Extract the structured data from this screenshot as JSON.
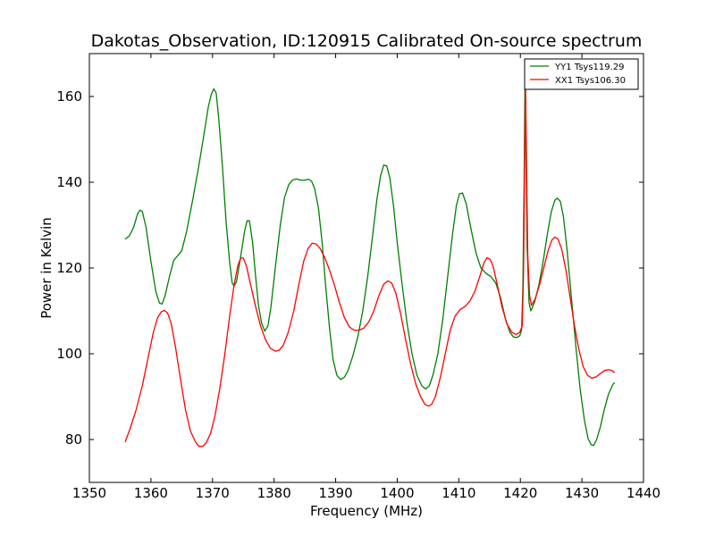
{
  "chart_data": {
    "type": "line",
    "title": "Dakotas_Observation, ID:120915 Calibrated On-source spectrum",
    "xlabel": "Frequency (MHz)",
    "ylabel": "Power in Kelvin",
    "xlim": [
      1350,
      1440
    ],
    "ylim": [
      70,
      170
    ],
    "xticks": [
      1350,
      1360,
      1370,
      1380,
      1390,
      1400,
      1410,
      1420,
      1430,
      1440
    ],
    "yticks": [
      80,
      100,
      120,
      140,
      160
    ],
    "grid": false,
    "legend": "top-right",
    "series": [
      {
        "name": "YY1 Tsys119.29",
        "color": "#008000",
        "points": [
          [
            1355.8,
            126.7
          ],
          [
            1356.5,
            127.5
          ],
          [
            1357.2,
            129.5
          ],
          [
            1357.8,
            132.5
          ],
          [
            1358.2,
            133.5
          ],
          [
            1358.6,
            133.2
          ],
          [
            1359.2,
            129.5
          ],
          [
            1360.0,
            121.5
          ],
          [
            1360.8,
            114.5
          ],
          [
            1361.4,
            111.8
          ],
          [
            1361.8,
            111.6
          ],
          [
            1362.3,
            113.5
          ],
          [
            1363.0,
            118.0
          ],
          [
            1363.7,
            121.8
          ],
          [
            1364.3,
            122.8
          ],
          [
            1365.0,
            124.0
          ],
          [
            1365.8,
            128.5
          ],
          [
            1366.8,
            136.0
          ],
          [
            1367.8,
            144.0
          ],
          [
            1368.6,
            151.0
          ],
          [
            1369.3,
            157.5
          ],
          [
            1369.8,
            160.5
          ],
          [
            1370.2,
            161.8
          ],
          [
            1370.6,
            160.8
          ],
          [
            1371.0,
            155.0
          ],
          [
            1371.6,
            144.0
          ],
          [
            1372.2,
            131.0
          ],
          [
            1372.8,
            121.0
          ],
          [
            1373.2,
            116.5
          ],
          [
            1373.5,
            115.8
          ],
          [
            1373.9,
            116.8
          ],
          [
            1374.5,
            122.0
          ],
          [
            1375.2,
            128.5
          ],
          [
            1375.6,
            131.0
          ],
          [
            1376.0,
            131.0
          ],
          [
            1376.5,
            126.0
          ],
          [
            1377.0,
            118.0
          ],
          [
            1377.5,
            111.0
          ],
          [
            1378.0,
            107.0
          ],
          [
            1378.5,
            105.3
          ],
          [
            1379.0,
            106.5
          ],
          [
            1379.5,
            111.0
          ],
          [
            1380.2,
            120.0
          ],
          [
            1381.0,
            130.0
          ],
          [
            1381.7,
            136.5
          ],
          [
            1382.4,
            139.5
          ],
          [
            1383.0,
            140.5
          ],
          [
            1383.6,
            140.8
          ],
          [
            1384.3,
            140.5
          ],
          [
            1385.0,
            140.5
          ],
          [
            1385.6,
            140.7
          ],
          [
            1386.1,
            140.2
          ],
          [
            1386.6,
            138.5
          ],
          [
            1387.2,
            134.0
          ],
          [
            1387.8,
            126.0
          ],
          [
            1388.4,
            115.5
          ],
          [
            1389.0,
            106.0
          ],
          [
            1389.6,
            98.5
          ],
          [
            1390.2,
            95.0
          ],
          [
            1390.8,
            94.0
          ],
          [
            1391.4,
            94.5
          ],
          [
            1392.0,
            96.0
          ],
          [
            1392.8,
            99.5
          ],
          [
            1393.6,
            104.0
          ],
          [
            1394.4,
            110.0
          ],
          [
            1395.2,
            118.0
          ],
          [
            1396.0,
            127.5
          ],
          [
            1396.7,
            136.0
          ],
          [
            1397.3,
            141.5
          ],
          [
            1397.8,
            144.0
          ],
          [
            1398.3,
            143.8
          ],
          [
            1398.8,
            141.0
          ],
          [
            1399.4,
            134.5
          ],
          [
            1400.0,
            126.0
          ],
          [
            1400.8,
            116.0
          ],
          [
            1401.6,
            107.0
          ],
          [
            1402.4,
            100.0
          ],
          [
            1403.2,
            95.0
          ],
          [
            1404.0,
            92.5
          ],
          [
            1404.6,
            91.8
          ],
          [
            1405.2,
            92.5
          ],
          [
            1405.8,
            95.0
          ],
          [
            1406.6,
            100.0
          ],
          [
            1407.4,
            108.0
          ],
          [
            1408.2,
            118.0
          ],
          [
            1409.0,
            128.0
          ],
          [
            1409.6,
            134.5
          ],
          [
            1410.1,
            137.3
          ],
          [
            1410.6,
            137.5
          ],
          [
            1411.2,
            135.0
          ],
          [
            1412.0,
            129.0
          ],
          [
            1412.8,
            123.5
          ],
          [
            1413.6,
            120.0
          ],
          [
            1414.4,
            118.8
          ],
          [
            1415.2,
            118.0
          ],
          [
            1416.0,
            116.5
          ],
          [
            1416.8,
            113.0
          ],
          [
            1417.6,
            108.0
          ],
          [
            1418.3,
            105.0
          ],
          [
            1418.9,
            103.9
          ],
          [
            1419.4,
            103.8
          ],
          [
            1419.9,
            104.2
          ],
          [
            1420.2,
            105.5
          ],
          [
            1420.4,
            115.0
          ],
          [
            1420.6,
            140.0
          ],
          [
            1420.75,
            164.0
          ],
          [
            1420.9,
            150.0
          ],
          [
            1421.1,
            125.0
          ],
          [
            1421.4,
            112.0
          ],
          [
            1421.7,
            110.0
          ],
          [
            1422.3,
            112.0
          ],
          [
            1423.0,
            116.0
          ],
          [
            1423.7,
            121.5
          ],
          [
            1424.4,
            128.0
          ],
          [
            1425.0,
            133.0
          ],
          [
            1425.6,
            135.8
          ],
          [
            1426.0,
            136.3
          ],
          [
            1426.5,
            135.5
          ],
          [
            1427.0,
            132.0
          ],
          [
            1427.6,
            124.0
          ],
          [
            1428.3,
            113.0
          ],
          [
            1429.0,
            102.0
          ],
          [
            1429.7,
            92.0
          ],
          [
            1430.4,
            84.5
          ],
          [
            1431.0,
            80.2
          ],
          [
            1431.5,
            78.8
          ],
          [
            1431.9,
            78.6
          ],
          [
            1432.4,
            80.0
          ],
          [
            1433.0,
            83.0
          ],
          [
            1433.6,
            86.8
          ],
          [
            1434.3,
            90.5
          ],
          [
            1435.0,
            92.8
          ],
          [
            1435.3,
            93.3
          ]
        ]
      },
      {
        "name": "XX1 Tsys106.30",
        "color": "#ff0000",
        "points": [
          [
            1355.8,
            79.4
          ],
          [
            1356.6,
            82.5
          ],
          [
            1357.6,
            87.0
          ],
          [
            1358.6,
            92.5
          ],
          [
            1359.6,
            99.5
          ],
          [
            1360.4,
            105.0
          ],
          [
            1361.1,
            108.5
          ],
          [
            1361.7,
            109.8
          ],
          [
            1362.2,
            110.1
          ],
          [
            1362.7,
            109.5
          ],
          [
            1363.3,
            107.0
          ],
          [
            1364.0,
            101.5
          ],
          [
            1364.8,
            94.0
          ],
          [
            1365.6,
            87.0
          ],
          [
            1366.4,
            82.0
          ],
          [
            1367.2,
            79.5
          ],
          [
            1367.8,
            78.4
          ],
          [
            1368.4,
            78.4
          ],
          [
            1369.0,
            79.3
          ],
          [
            1369.7,
            81.5
          ],
          [
            1370.4,
            85.5
          ],
          [
            1371.2,
            92.0
          ],
          [
            1372.0,
            100.0
          ],
          [
            1372.8,
            109.0
          ],
          [
            1373.5,
            116.0
          ],
          [
            1374.1,
            120.5
          ],
          [
            1374.6,
            122.4
          ],
          [
            1375.0,
            122.3
          ],
          [
            1375.5,
            120.5
          ],
          [
            1376.2,
            116.0
          ],
          [
            1377.0,
            111.0
          ],
          [
            1377.8,
            106.5
          ],
          [
            1378.6,
            103.3
          ],
          [
            1379.4,
            101.3
          ],
          [
            1380.2,
            100.6
          ],
          [
            1380.8,
            100.8
          ],
          [
            1381.5,
            102.0
          ],
          [
            1382.3,
            105.0
          ],
          [
            1383.2,
            110.0
          ],
          [
            1384.0,
            116.0
          ],
          [
            1384.8,
            121.5
          ],
          [
            1385.5,
            124.5
          ],
          [
            1386.2,
            125.8
          ],
          [
            1386.8,
            125.6
          ],
          [
            1387.5,
            124.5
          ],
          [
            1388.2,
            122.5
          ],
          [
            1389.0,
            119.5
          ],
          [
            1389.8,
            116.0
          ],
          [
            1390.6,
            112.0
          ],
          [
            1391.4,
            108.5
          ],
          [
            1392.2,
            106.3
          ],
          [
            1393.0,
            105.5
          ],
          [
            1393.8,
            105.5
          ],
          [
            1394.6,
            106.0
          ],
          [
            1395.4,
            107.5
          ],
          [
            1396.2,
            110.0
          ],
          [
            1397.0,
            113.5
          ],
          [
            1397.8,
            116.2
          ],
          [
            1398.5,
            117.0
          ],
          [
            1399.1,
            116.5
          ],
          [
            1399.8,
            114.0
          ],
          [
            1400.6,
            109.0
          ],
          [
            1401.4,
            103.0
          ],
          [
            1402.2,
            97.5
          ],
          [
            1403.0,
            93.0
          ],
          [
            1403.8,
            90.0
          ],
          [
            1404.5,
            88.2
          ],
          [
            1405.1,
            87.8
          ],
          [
            1405.6,
            88.2
          ],
          [
            1406.2,
            90.0
          ],
          [
            1407.0,
            94.5
          ],
          [
            1407.8,
            100.0
          ],
          [
            1408.6,
            105.5
          ],
          [
            1409.4,
            108.8
          ],
          [
            1410.2,
            110.3
          ],
          [
            1411.0,
            111.0
          ],
          [
            1411.8,
            112.3
          ],
          [
            1412.6,
            114.5
          ],
          [
            1413.4,
            118.0
          ],
          [
            1414.1,
            121.3
          ],
          [
            1414.6,
            122.4
          ],
          [
            1415.1,
            122.0
          ],
          [
            1415.6,
            120.3
          ],
          [
            1416.2,
            116.5
          ],
          [
            1417.0,
            111.0
          ],
          [
            1417.8,
            107.0
          ],
          [
            1418.6,
            105.0
          ],
          [
            1419.3,
            104.5
          ],
          [
            1419.9,
            105.0
          ],
          [
            1420.3,
            106.5
          ],
          [
            1420.5,
            118.0
          ],
          [
            1420.7,
            145.0
          ],
          [
            1420.85,
            161.5
          ],
          [
            1421.0,
            145.0
          ],
          [
            1421.2,
            123.0
          ],
          [
            1421.5,
            113.5
          ],
          [
            1421.8,
            111.3
          ],
          [
            1422.4,
            112.8
          ],
          [
            1423.1,
            116.0
          ],
          [
            1423.8,
            120.0
          ],
          [
            1424.5,
            124.0
          ],
          [
            1425.1,
            126.5
          ],
          [
            1425.6,
            127.2
          ],
          [
            1426.1,
            126.8
          ],
          [
            1426.7,
            124.5
          ],
          [
            1427.4,
            119.5
          ],
          [
            1428.1,
            113.0
          ],
          [
            1428.8,
            106.5
          ],
          [
            1429.5,
            101.0
          ],
          [
            1430.2,
            97.0
          ],
          [
            1430.9,
            95.0
          ],
          [
            1431.6,
            94.3
          ],
          [
            1432.3,
            94.6
          ],
          [
            1433.0,
            95.4
          ],
          [
            1433.7,
            96.1
          ],
          [
            1434.4,
            96.3
          ],
          [
            1435.0,
            96.0
          ],
          [
            1435.3,
            95.5
          ]
        ]
      }
    ]
  }
}
